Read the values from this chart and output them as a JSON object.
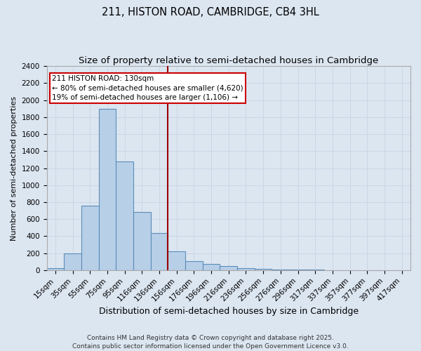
{
  "title": "211, HISTON ROAD, CAMBRIDGE, CB4 3HL",
  "subtitle": "Size of property relative to semi-detached houses in Cambridge",
  "xlabel": "Distribution of semi-detached houses by size in Cambridge",
  "ylabel": "Number of semi-detached properties",
  "categories": [
    "15sqm",
    "35sqm",
    "55sqm",
    "75sqm",
    "95sqm",
    "116sqm",
    "136sqm",
    "156sqm",
    "176sqm",
    "196sqm",
    "216sqm",
    "236sqm",
    "256sqm",
    "276sqm",
    "296sqm",
    "317sqm",
    "337sqm",
    "357sqm",
    "377sqm",
    "397sqm",
    "417sqm"
  ],
  "values": [
    25,
    200,
    760,
    1900,
    1280,
    680,
    435,
    225,
    110,
    70,
    45,
    25,
    15,
    10,
    8,
    5,
    3,
    2,
    1,
    1,
    1
  ],
  "bar_color": "#b8cfe8",
  "bar_edge_color": "#5b8db8",
  "background_color": "#dce6f1",
  "grid_color": "#c8d4e4",
  "vline_x": 6.5,
  "vline_color": "#990000",
  "ylim": [
    0,
    2400
  ],
  "yticks": [
    0,
    200,
    400,
    600,
    800,
    1000,
    1200,
    1400,
    1600,
    1800,
    2000,
    2200,
    2400
  ],
  "annotation_title": "211 HISTON ROAD: 130sqm",
  "annotation_line1": "← 80% of semi-detached houses are smaller (4,620)",
  "annotation_line2": "19% of semi-detached houses are larger (1,106) →",
  "annotation_box_color": "#ffffff",
  "annotation_edge_color": "#cc0000",
  "footer1": "Contains HM Land Registry data © Crown copyright and database right 2025.",
  "footer2": "Contains public sector information licensed under the Open Government Licence v3.0.",
  "title_fontsize": 10.5,
  "subtitle_fontsize": 9.5,
  "xlabel_fontsize": 9,
  "ylabel_fontsize": 8,
  "tick_fontsize": 7.5,
  "annotation_fontsize": 7.5,
  "footer_fontsize": 6.5
}
